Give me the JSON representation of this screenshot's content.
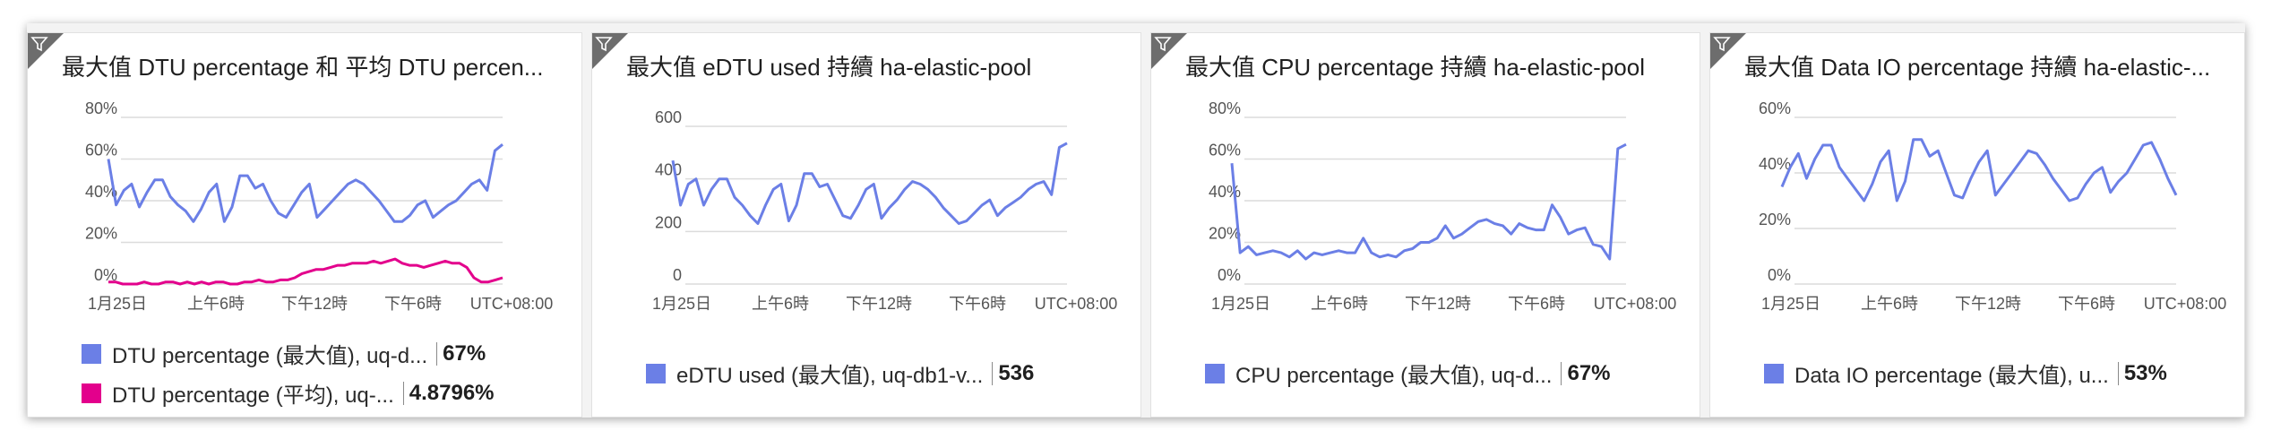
{
  "colors": {
    "max_series": "#6b7fe6",
    "avg_series": "#e3008c",
    "grid": "#dcdcdc",
    "axis_text": "#555555"
  },
  "tiles": [
    {
      "title": "最大值 DTU percentage 和 平均 DTU percen...",
      "legend": [
        {
          "label": "DTU percentage (最大值), uq-d...",
          "value": "67%",
          "color": "#6b7fe6"
        },
        {
          "label": "DTU percentage (平均), uq-...",
          "value": "4.8796%",
          "color": "#e3008c"
        }
      ]
    },
    {
      "title": "最大值 eDTU used 持續 ha-elastic-pool",
      "legend": [
        {
          "label": "eDTU used (最大值), uq-db1-v...",
          "value": "536",
          "color": "#6b7fe6"
        }
      ]
    },
    {
      "title": "最大值 CPU percentage 持續 ha-elastic-pool",
      "legend": [
        {
          "label": "CPU percentage (最大值), uq-d...",
          "value": "67%",
          "color": "#6b7fe6"
        }
      ]
    },
    {
      "title": "最大值 Data IO percentage 持續 ha-elastic-...",
      "legend": [
        {
          "label": "Data IO percentage (最大值), u...",
          "value": "53%",
          "color": "#6b7fe6"
        }
      ]
    }
  ],
  "chart_data": [
    {
      "type": "line",
      "ylim": [
        0,
        80
      ],
      "y_ticks": [
        "0%",
        "20%",
        "40%",
        "60%",
        "80%"
      ],
      "x_ticks": [
        "1月25日",
        "上午6時",
        "下午12時",
        "下午6時",
        "UTC+08:00"
      ],
      "series": [
        {
          "name": "DTU percentage (最大值), uq-d...",
          "color": "#6b7fe6",
          "values": [
            60,
            38,
            45,
            48,
            37,
            44,
            50,
            50,
            42,
            38,
            35,
            30,
            36,
            44,
            48,
            30,
            37,
            52,
            52,
            46,
            48,
            40,
            34,
            32,
            38,
            44,
            48,
            32,
            36,
            40,
            44,
            48,
            50,
            48,
            44,
            40,
            35,
            30,
            30,
            33,
            38,
            40,
            32,
            35,
            38,
            40,
            44,
            48,
            50,
            45,
            64,
            67
          ]
        },
        {
          "name": "DTU percentage (平均), uq-...",
          "color": "#e3008c",
          "values": [
            1,
            1,
            0,
            0,
            0,
            1,
            0,
            0,
            1,
            1,
            0,
            1,
            0,
            1,
            0,
            1,
            1,
            0,
            0,
            1,
            1,
            2,
            1,
            1,
            2,
            2,
            3,
            5,
            6,
            7,
            7,
            8,
            9,
            9,
            10,
            10,
            10,
            11,
            10,
            11,
            12,
            10,
            9,
            9,
            8,
            9,
            10,
            11,
            10,
            10,
            8,
            3,
            1,
            1,
            2,
            3
          ]
        }
      ]
    },
    {
      "type": "line",
      "ylim": [
        0,
        600
      ],
      "y_ticks": [
        "0",
        "200",
        "400",
        "600"
      ],
      "x_ticks": [
        "1月25日",
        "上午6時",
        "下午12時",
        "下午6時",
        "UTC+08:00"
      ],
      "series": [
        {
          "name": "eDTU used (最大值), uq-db1-v...",
          "color": "#6b7fe6",
          "values": [
            470,
            300,
            380,
            400,
            300,
            360,
            400,
            400,
            330,
            300,
            260,
            230,
            300,
            360,
            380,
            240,
            300,
            420,
            420,
            370,
            380,
            320,
            260,
            250,
            300,
            360,
            380,
            250,
            290,
            320,
            360,
            390,
            380,
            360,
            330,
            290,
            260,
            230,
            240,
            270,
            300,
            320,
            260,
            290,
            310,
            330,
            360,
            380,
            390,
            340,
            520,
            536
          ]
        }
      ]
    },
    {
      "type": "line",
      "ylim": [
        0,
        80
      ],
      "y_ticks": [
        "0%",
        "20%",
        "40%",
        "60%",
        "80%"
      ],
      "x_ticks": [
        "1月25日",
        "上午6時",
        "下午12時",
        "下午6時",
        "UTC+08:00"
      ],
      "series": [
        {
          "name": "CPU percentage (最大值), uq-d...",
          "color": "#6b7fe6",
          "values": [
            58,
            15,
            18,
            14,
            15,
            16,
            15,
            13,
            16,
            12,
            15,
            14,
            15,
            16,
            15,
            15,
            22,
            15,
            13,
            14,
            13,
            16,
            17,
            20,
            20,
            22,
            28,
            22,
            24,
            27,
            30,
            31,
            29,
            28,
            24,
            29,
            27,
            26,
            26,
            38,
            32,
            24,
            26,
            27,
            19,
            18,
            12,
            65,
            67
          ]
        }
      ]
    },
    {
      "type": "line",
      "ylim": [
        0,
        60
      ],
      "y_ticks": [
        "0%",
        "20%",
        "40%",
        "60%"
      ],
      "x_ticks": [
        "1月25日",
        "上午6時",
        "下午12時",
        "下午6時",
        "UTC+08:00"
      ],
      "series": [
        {
          "name": "Data IO percentage (最大值), u...",
          "color": "#6b7fe6",
          "values": [
            35,
            42,
            47,
            38,
            45,
            50,
            50,
            42,
            38,
            34,
            30,
            36,
            44,
            48,
            30,
            37,
            52,
            52,
            46,
            48,
            40,
            32,
            31,
            38,
            44,
            48,
            32,
            36,
            40,
            44,
            48,
            47,
            43,
            38,
            34,
            30,
            31,
            36,
            40,
            42,
            33,
            37,
            40,
            45,
            50,
            51,
            45,
            38,
            32
          ]
        }
      ]
    }
  ]
}
